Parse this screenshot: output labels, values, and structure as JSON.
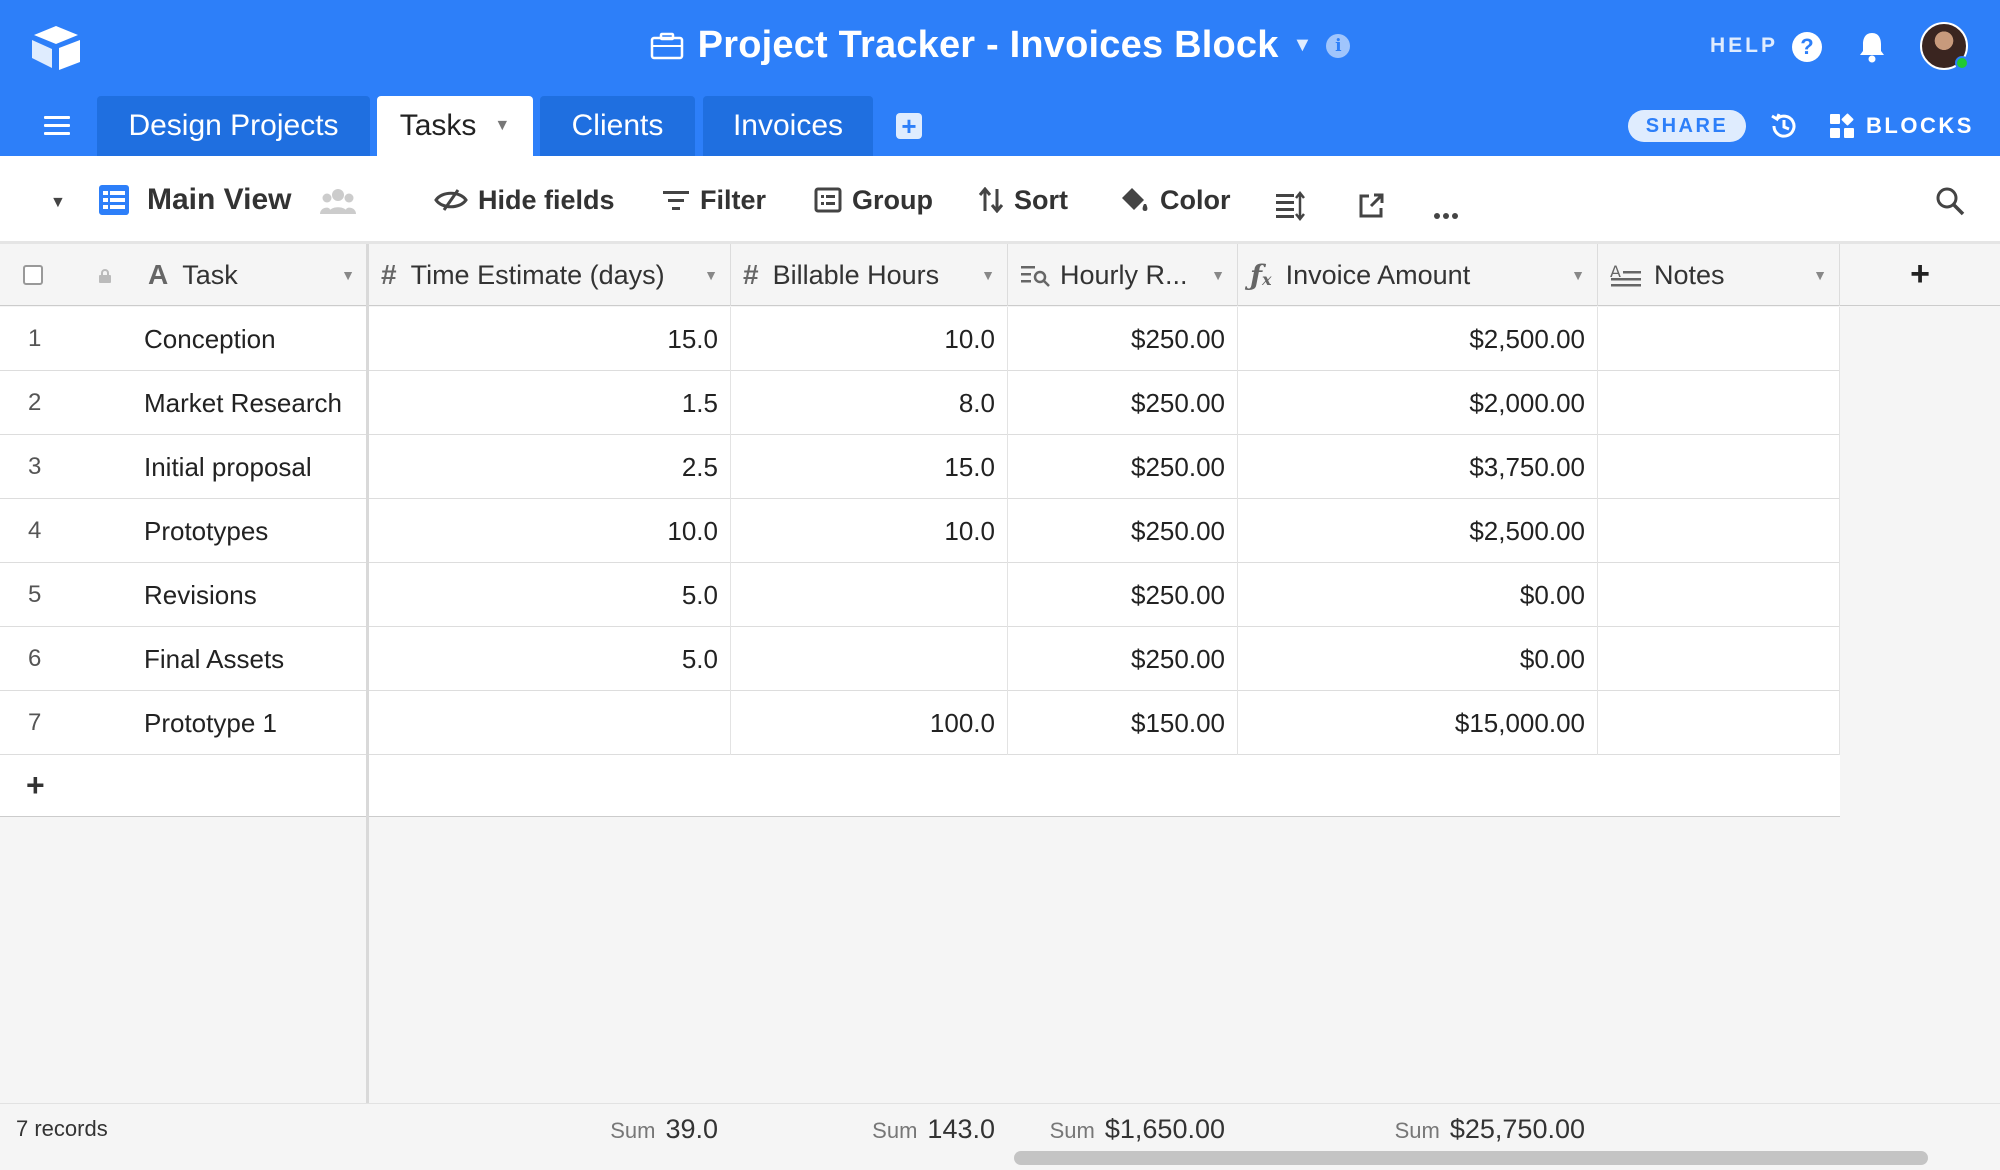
{
  "header": {
    "title": "Project Tracker - Invoices Block",
    "help_label": "HELP"
  },
  "tabs": [
    {
      "label": "Design Projects",
      "active": false
    },
    {
      "label": "Tasks",
      "active": true
    },
    {
      "label": "Clients",
      "active": false
    },
    {
      "label": "Invoices",
      "active": false
    }
  ],
  "tabbar": {
    "share_label": "SHARE",
    "blocks_label": "BLOCKS"
  },
  "viewbar": {
    "view_name": "Main View",
    "tools": [
      "Hide fields",
      "Filter",
      "Group",
      "Sort",
      "Color"
    ]
  },
  "columns": [
    {
      "label": "Task",
      "icon": "text-field-icon"
    },
    {
      "label": "Time Estimate (days)",
      "icon": "number-field-icon"
    },
    {
      "label": "Billable Hours",
      "icon": "number-field-icon"
    },
    {
      "label": "Hourly R...",
      "icon": "lookup-field-icon"
    },
    {
      "label": "Invoice Amount",
      "icon": "formula-field-icon"
    },
    {
      "label": "Notes",
      "icon": "long-text-field-icon"
    }
  ],
  "rows": [
    {
      "n": "1",
      "task": "Conception",
      "time": "15.0",
      "hours": "10.0",
      "rate": "$250.00",
      "amount": "$2,500.00",
      "notes": ""
    },
    {
      "n": "2",
      "task": "Market Research",
      "time": "1.5",
      "hours": "8.0",
      "rate": "$250.00",
      "amount": "$2,000.00",
      "notes": ""
    },
    {
      "n": "3",
      "task": "Initial proposal",
      "time": "2.5",
      "hours": "15.0",
      "rate": "$250.00",
      "amount": "$3,750.00",
      "notes": ""
    },
    {
      "n": "4",
      "task": "Prototypes",
      "time": "10.0",
      "hours": "10.0",
      "rate": "$250.00",
      "amount": "$2,500.00",
      "notes": ""
    },
    {
      "n": "5",
      "task": "Revisions",
      "time": "5.0",
      "hours": "",
      "rate": "$250.00",
      "amount": "$0.00",
      "notes": ""
    },
    {
      "n": "6",
      "task": "Final Assets",
      "time": "5.0",
      "hours": "",
      "rate": "$250.00",
      "amount": "$0.00",
      "notes": ""
    },
    {
      "n": "7",
      "task": "Prototype 1",
      "time": "",
      "hours": "100.0",
      "rate": "$150.00",
      "amount": "$15,000.00",
      "notes": ""
    }
  ],
  "footer": {
    "records": "7 records",
    "sum_label": "Sum",
    "sum_time": "39.0",
    "sum_hours": "143.0",
    "sum_rate": "$1,650.00",
    "sum_amount": "$25,750.00"
  },
  "colors": {
    "brand_blue": "#2d7ff9",
    "inactive_tab": "#1f6fe0",
    "online_green": "#20c933"
  }
}
